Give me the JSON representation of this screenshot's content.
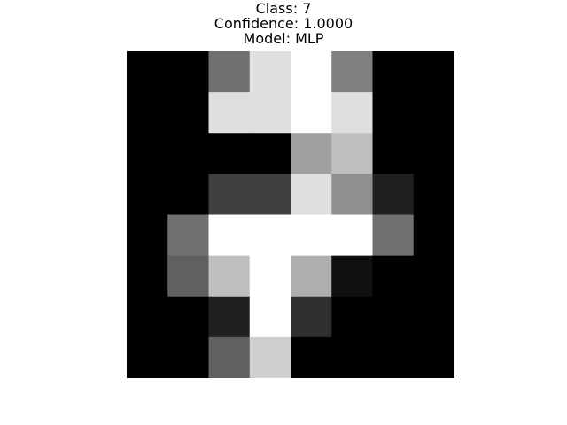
{
  "header": {
    "class_text": "Class: 7",
    "confidence_text": "Confidence: 1.0000",
    "model_text": "Model: MLP"
  },
  "digit_image": {
    "rows": 8,
    "cols": 8,
    "colormap": "gray",
    "pixels": [
      [
        0,
        0,
        7,
        14,
        16,
        8,
        0,
        0
      ],
      [
        0,
        0,
        14,
        14,
        16,
        14,
        0,
        0
      ],
      [
        0,
        0,
        0,
        0,
        10,
        12,
        0,
        0
      ],
      [
        0,
        0,
        4,
        4,
        14,
        9,
        2,
        0
      ],
      [
        0,
        7,
        16,
        16,
        16,
        16,
        7,
        0
      ],
      [
        0,
        6,
        12,
        16,
        11,
        1,
        0,
        0
      ],
      [
        0,
        0,
        2,
        16,
        3,
        0,
        0,
        0
      ],
      [
        0,
        0,
        6,
        13,
        0,
        0,
        0,
        0
      ]
    ]
  }
}
